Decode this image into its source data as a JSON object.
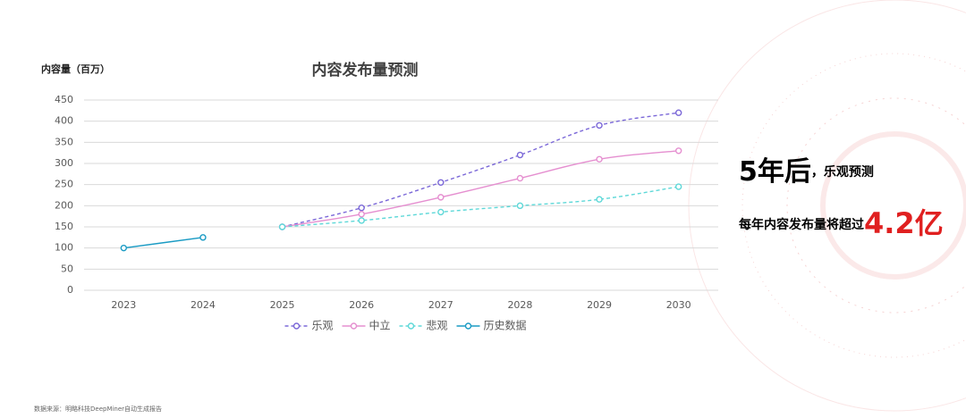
{
  "chart_data": {
    "type": "line",
    "title": "内容发布量预测",
    "y_label": "内容量（百万）",
    "categories": [
      "2023",
      "2024",
      "2025",
      "2026",
      "2027",
      "2028",
      "2029",
      "2030"
    ],
    "series": [
      {
        "name": "乐观",
        "color": "#7b68d8",
        "dashed": true,
        "values": [
          null,
          null,
          150,
          195,
          255,
          320,
          390,
          420
        ]
      },
      {
        "name": "中立",
        "color": "#e58fd0",
        "dashed": false,
        "values": [
          null,
          null,
          150,
          180,
          220,
          265,
          310,
          330
        ]
      },
      {
        "name": "悲观",
        "color": "#5ed8d8",
        "dashed": true,
        "values": [
          null,
          null,
          150,
          165,
          185,
          200,
          215,
          245
        ]
      },
      {
        "name": "历史数据",
        "color": "#1a9bc4",
        "dashed": false,
        "values": [
          100,
          125,
          null,
          null,
          null,
          null,
          null,
          null
        ]
      }
    ],
    "ylim": [
      0,
      450
    ],
    "yticks": [
      0,
      50,
      100,
      150,
      200,
      250,
      300,
      350,
      400,
      450
    ],
    "grid": true,
    "legend": "bottom",
    "annotations": {
      "headline": "5年后",
      "headline_note": "，乐观预测",
      "statement": "每年内容发布量将超过",
      "highlight": "4.2亿"
    },
    "source": "数据来源：明略科技DeepMiner自动生成报告"
  }
}
